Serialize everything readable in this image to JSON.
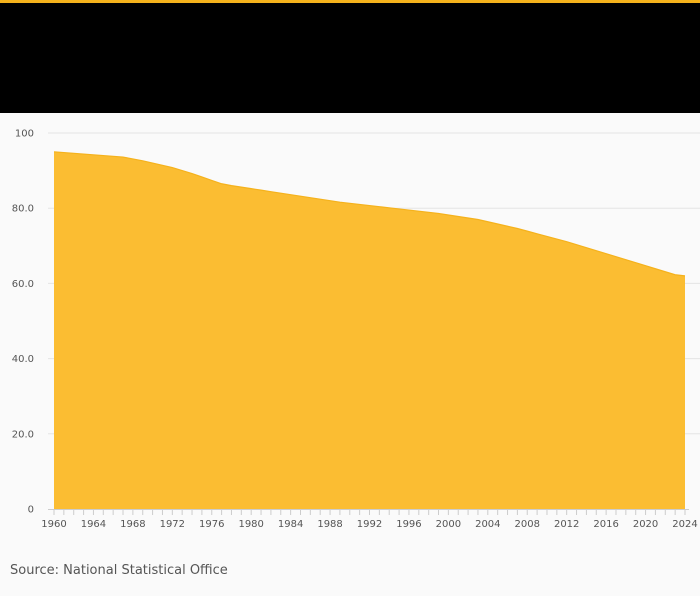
{
  "colors": {
    "accent": "#f5b21c",
    "header_background": "#000000",
    "area_fill": "#fbbd32",
    "area_stroke": "#f5b21c",
    "gridline": "#e4e4e4",
    "axis": "#cccccc",
    "tick_text": "#555555",
    "page_background": "#fafafa"
  },
  "source": "Source: National Statistical Office",
  "chart_data": {
    "type": "area",
    "title": "",
    "xlabel": "",
    "ylabel": "",
    "xlim": [
      1960,
      2024
    ],
    "ylim": [
      0,
      100
    ],
    "grid": true,
    "legend": "none",
    "y_ticks": [
      0,
      20,
      40,
      60,
      80,
      100
    ],
    "y_tick_labels": [
      "0",
      "20.0",
      "40.0",
      "60.0",
      "80.0",
      "100"
    ],
    "x_tick_labels": [
      "1960",
      "1964",
      "1968",
      "1972",
      "1976",
      "1980",
      "1984",
      "1988",
      "1992",
      "1996",
      "2000",
      "2004",
      "2008",
      "2012",
      "2016",
      "2020",
      "2024"
    ],
    "x": [
      1960,
      1961,
      1962,
      1963,
      1964,
      1965,
      1966,
      1967,
      1968,
      1969,
      1970,
      1971,
      1972,
      1973,
      1974,
      1975,
      1976,
      1977,
      1978,
      1979,
      1980,
      1981,
      1982,
      1983,
      1984,
      1985,
      1986,
      1987,
      1988,
      1989,
      1990,
      1991,
      1992,
      1993,
      1994,
      1995,
      1996,
      1997,
      1998,
      1999,
      2000,
      2001,
      2002,
      2003,
      2004,
      2005,
      2006,
      2007,
      2008,
      2009,
      2010,
      2011,
      2012,
      2013,
      2014,
      2015,
      2016,
      2017,
      2018,
      2019,
      2020,
      2021,
      2022,
      2023,
      2024
    ],
    "series": [
      {
        "values": [
          95.0,
          94.8,
          94.6,
          94.4,
          94.2,
          94.0,
          93.8,
          93.6,
          93.1,
          92.6,
          92.0,
          91.4,
          90.8,
          90.0,
          89.2,
          88.3,
          87.4,
          86.5,
          86.0,
          85.6,
          85.2,
          84.8,
          84.4,
          84.0,
          83.6,
          83.2,
          82.8,
          82.4,
          82.0,
          81.6,
          81.3,
          81.0,
          80.7,
          80.4,
          80.1,
          79.8,
          79.5,
          79.2,
          78.9,
          78.6,
          78.2,
          77.8,
          77.4,
          77.0,
          76.4,
          75.8,
          75.2,
          74.6,
          73.9,
          73.2,
          72.5,
          71.8,
          71.1,
          70.3,
          69.5,
          68.7,
          67.9,
          67.1,
          66.3,
          65.5,
          64.7,
          63.9,
          63.1,
          62.3,
          62.0
        ]
      }
    ]
  }
}
